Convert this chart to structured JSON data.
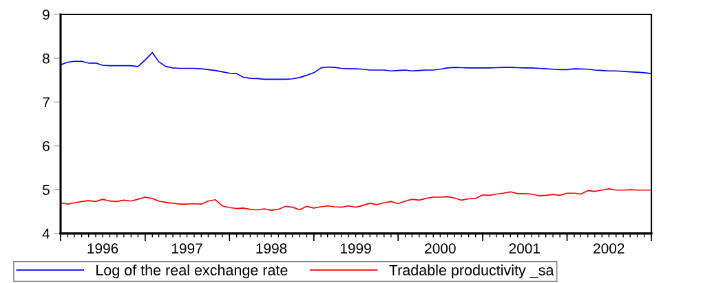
{
  "chart_data": {
    "type": "line",
    "x": [
      "1996-01",
      "1996-02",
      "1996-03",
      "1996-04",
      "1996-05",
      "1996-06",
      "1996-07",
      "1996-08",
      "1996-09",
      "1996-10",
      "1996-11",
      "1996-12",
      "1997-01",
      "1997-02",
      "1997-03",
      "1997-04",
      "1997-05",
      "1997-06",
      "1997-07",
      "1997-08",
      "1997-09",
      "1997-10",
      "1997-11",
      "1997-12",
      "1998-01",
      "1998-02",
      "1998-03",
      "1998-04",
      "1998-05",
      "1998-06",
      "1998-07",
      "1998-08",
      "1998-09",
      "1998-10",
      "1998-11",
      "1998-12",
      "1999-01",
      "1999-02",
      "1999-03",
      "1999-04",
      "1999-05",
      "1999-06",
      "1999-07",
      "1999-08",
      "1999-09",
      "1999-10",
      "1999-11",
      "1999-12",
      "2000-01",
      "2000-02",
      "2000-03",
      "2000-04",
      "2000-05",
      "2000-06",
      "2000-07",
      "2000-08",
      "2000-09",
      "2000-10",
      "2000-11",
      "2000-12",
      "2001-01",
      "2001-02",
      "2001-03",
      "2001-04",
      "2001-05",
      "2001-06",
      "2001-07",
      "2001-08",
      "2001-09",
      "2001-10",
      "2001-11",
      "2001-12",
      "2002-01",
      "2002-02",
      "2002-03",
      "2002-04",
      "2002-05",
      "2002-06",
      "2002-07",
      "2002-08",
      "2002-09",
      "2002-10",
      "2002-11",
      "2002-12",
      "2003-01"
    ],
    "series": [
      {
        "name": "Log of the real exchange rate",
        "color": "#0000ff",
        "values": [
          7.85,
          7.91,
          7.93,
          7.93,
          7.89,
          7.89,
          7.84,
          7.83,
          7.83,
          7.83,
          7.83,
          7.81,
          7.96,
          8.13,
          7.92,
          7.81,
          7.78,
          7.77,
          7.77,
          7.77,
          7.76,
          7.74,
          7.72,
          7.69,
          7.66,
          7.65,
          7.57,
          7.54,
          7.535,
          7.52,
          7.52,
          7.52,
          7.52,
          7.53,
          7.56,
          7.61,
          7.67,
          7.78,
          7.8,
          7.79,
          7.77,
          7.76,
          7.76,
          7.75,
          7.73,
          7.73,
          7.73,
          7.71,
          7.72,
          7.73,
          7.71,
          7.72,
          7.73,
          7.73,
          7.75,
          7.78,
          7.79,
          7.785,
          7.78,
          7.78,
          7.78,
          7.78,
          7.785,
          7.79,
          7.79,
          7.785,
          7.78,
          7.78,
          7.77,
          7.76,
          7.75,
          7.74,
          7.74,
          7.76,
          7.755,
          7.75,
          7.73,
          7.72,
          7.71,
          7.71,
          7.7,
          7.69,
          7.68,
          7.67,
          7.65
        ]
      },
      {
        "name": "Tradable productivity _sa",
        "color": "#ff0000",
        "values": [
          4.7,
          4.67,
          4.7,
          4.73,
          4.75,
          4.73,
          4.78,
          4.74,
          4.73,
          4.76,
          4.74,
          4.78,
          4.83,
          4.8,
          4.74,
          4.71,
          4.69,
          4.67,
          4.67,
          4.68,
          4.67,
          4.74,
          4.77,
          4.63,
          4.59,
          4.57,
          4.58,
          4.55,
          4.54,
          4.56,
          4.53,
          4.55,
          4.62,
          4.6,
          4.54,
          4.62,
          4.58,
          4.61,
          4.63,
          4.61,
          4.6,
          4.63,
          4.6,
          4.64,
          4.69,
          4.66,
          4.7,
          4.73,
          4.68,
          4.74,
          4.78,
          4.76,
          4.8,
          4.83,
          4.83,
          4.84,
          4.81,
          4.76,
          4.79,
          4.8,
          4.88,
          4.87,
          4.9,
          4.92,
          4.95,
          4.91,
          4.91,
          4.9,
          4.86,
          4.87,
          4.89,
          4.87,
          4.92,
          4.92,
          4.9,
          4.98,
          4.96,
          4.99,
          5.02,
          4.99,
          4.99,
          5.0,
          4.99,
          4.99,
          4.99
        ]
      }
    ],
    "xlim": [
      "1996-01",
      "2003-01"
    ],
    "xticks": [
      {
        "value": "1996-01",
        "label": null
      },
      {
        "value": "1996-07",
        "label": "1996"
      },
      {
        "value": "1997-01",
        "label": null
      },
      {
        "value": "1997-07",
        "label": "1997"
      },
      {
        "value": "1998-01",
        "label": null
      },
      {
        "value": "1998-07",
        "label": "1998"
      },
      {
        "value": "1999-01",
        "label": null
      },
      {
        "value": "1999-07",
        "label": "1999"
      },
      {
        "value": "2000-01",
        "label": null
      },
      {
        "value": "2000-07",
        "label": "2000"
      },
      {
        "value": "2001-01",
        "label": null
      },
      {
        "value": "2001-07",
        "label": "2001"
      },
      {
        "value": "2002-01",
        "label": null
      },
      {
        "value": "2002-07",
        "label": "2002"
      },
      {
        "value": "2003-01",
        "label": null
      }
    ],
    "ylim": [
      4,
      9
    ],
    "yticks": [
      4,
      5,
      6,
      7,
      8,
      9
    ],
    "grid": false,
    "legend": "bottom",
    "line_style": "solid",
    "marker": "none"
  }
}
